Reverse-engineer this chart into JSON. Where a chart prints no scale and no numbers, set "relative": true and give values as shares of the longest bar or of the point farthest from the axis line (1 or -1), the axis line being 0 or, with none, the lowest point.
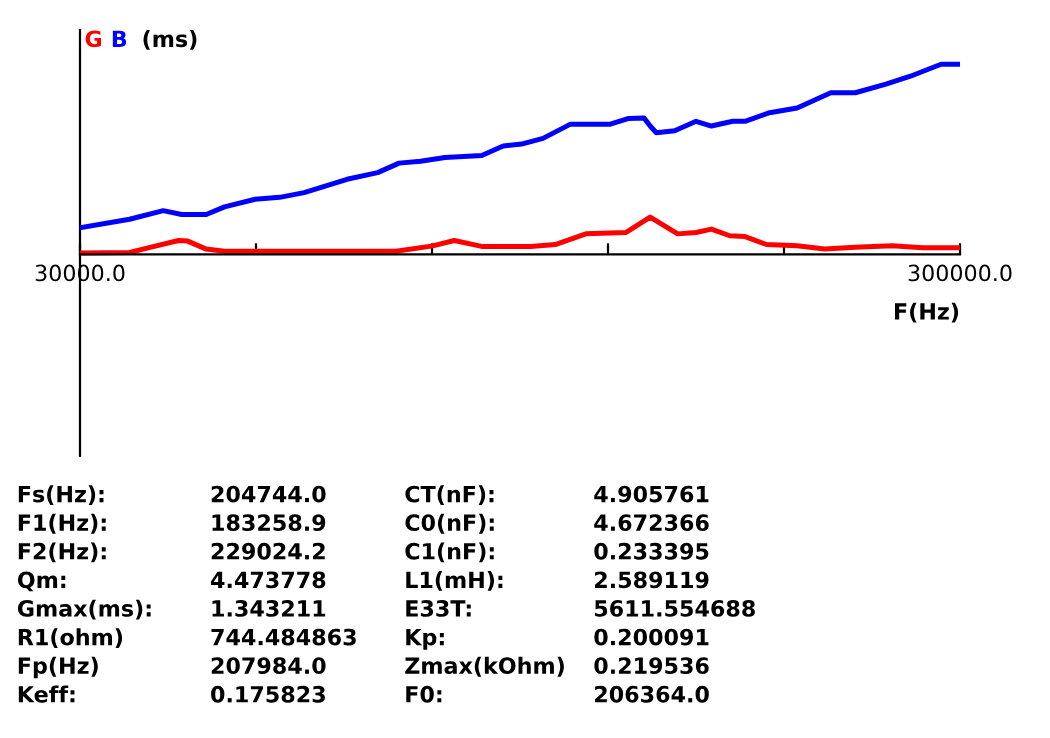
{
  "chart_data": {
    "type": "line",
    "relative": true,
    "ylabel": "(ms)",
    "xlabel": "F(Hz)",
    "xlim": [
      30000,
      300000
    ],
    "xticks": [
      {
        "value": 30000,
        "label": "30000.0"
      },
      {
        "value": 84000,
        "label": null
      },
      {
        "value": 138000,
        "label": null
      },
      {
        "value": 192000,
        "label": null
      },
      {
        "value": 246000,
        "label": null
      },
      {
        "value": 300000,
        "label": "300000.0"
      }
    ],
    "grid": false,
    "legend": false,
    "marker": "none",
    "line_style": "solid",
    "series": [
      {
        "name": "G",
        "color": "#ff0000",
        "x": [
          30000,
          45220,
          51800,
          60250,
          63070,
          68710,
          74340,
          100650,
          126950,
          138230,
          144810,
          153260,
          168290,
          175810,
          185200,
          197420,
          204940,
          213390,
          219030,
          223720,
          229360,
          234060,
          240640,
          250030,
          258480,
          267880,
          279150,
          288550,
          300000
        ],
        "values": [
          0.007,
          0.01,
          0.038,
          0.073,
          0.07,
          0.028,
          0.017,
          0.017,
          0.017,
          0.045,
          0.073,
          0.042,
          0.042,
          0.052,
          0.108,
          0.115,
          0.196,
          0.108,
          0.115,
          0.133,
          0.098,
          0.094,
          0.052,
          0.045,
          0.028,
          0.038,
          0.045,
          0.035,
          0.035
        ]
      },
      {
        "name": "B",
        "color": "#0000ff",
        "x": [
          30000,
          45220,
          55550,
          61190,
          68710,
          74340,
          83740,
          91260,
          98770,
          111930,
          121320,
          127890,
          134470,
          141990,
          153260,
          159840,
          165470,
          172050,
          180500,
          192720,
          198360,
          203060,
          204940,
          206820,
          212450,
          219030,
          223720,
          230300,
          234060,
          241570,
          250030,
          260360,
          267880,
          277270,
          284790,
          294180,
          300000
        ],
        "values": [
          0.14,
          0.185,
          0.23,
          0.21,
          0.21,
          0.25,
          0.29,
          0.3,
          0.325,
          0.395,
          0.43,
          0.48,
          0.49,
          0.51,
          0.52,
          0.57,
          0.58,
          0.61,
          0.685,
          0.685,
          0.715,
          0.717,
          0.675,
          0.64,
          0.65,
          0.7,
          0.675,
          0.7,
          0.7,
          0.745,
          0.77,
          0.85,
          0.85,
          0.895,
          0.937,
          1,
          1
        ]
      }
    ],
    "annotations": [
      "Fs(Hz):",
      "204744.0",
      "CT(nF):",
      "4.905761",
      "F1(Hz):",
      "183258.9",
      "C0(nF):",
      "4.672366",
      "F2(Hz):",
      "229024.2",
      "C1(nF):",
      "0.233395",
      "Qm:",
      "4.473778",
      "L1(mH):",
      "2.589119",
      "Gmax(ms):",
      "1.343211",
      "E33T:",
      "5611.554688",
      "R1(ohm)",
      "744.484863",
      "Kp:",
      "0.200091",
      "Fp(Hz)",
      "207984.0",
      "Zmax(kOhm)",
      "0.219536",
      "Keff:",
      "0.175823",
      "F0:",
      "206364.0"
    ]
  }
}
